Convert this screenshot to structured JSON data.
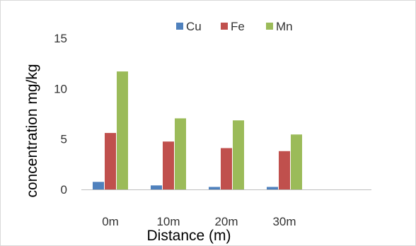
{
  "chart_data": {
    "type": "bar",
    "categories": [
      "0m",
      "10m",
      "20m",
      "30m",
      ""
    ],
    "series": [
      {
        "name": "Cu",
        "values": [
          0.75,
          0.4,
          0.25,
          0.25,
          null
        ],
        "color": "#4f81bd"
      },
      {
        "name": "Fe",
        "values": [
          5.6,
          4.75,
          4.1,
          3.8,
          null
        ],
        "color": "#c0504d"
      },
      {
        "name": "Mn",
        "values": [
          11.7,
          7.05,
          6.85,
          5.45,
          null
        ],
        "color": "#9bbb59"
      }
    ],
    "xlabel": "Distance (m)",
    "ylabel": "concentration mg/kg",
    "ylim": [
      0,
      15
    ],
    "yticks": [
      "0",
      "5",
      "10",
      "15"
    ],
    "grid": false,
    "legend_position": "top"
  }
}
